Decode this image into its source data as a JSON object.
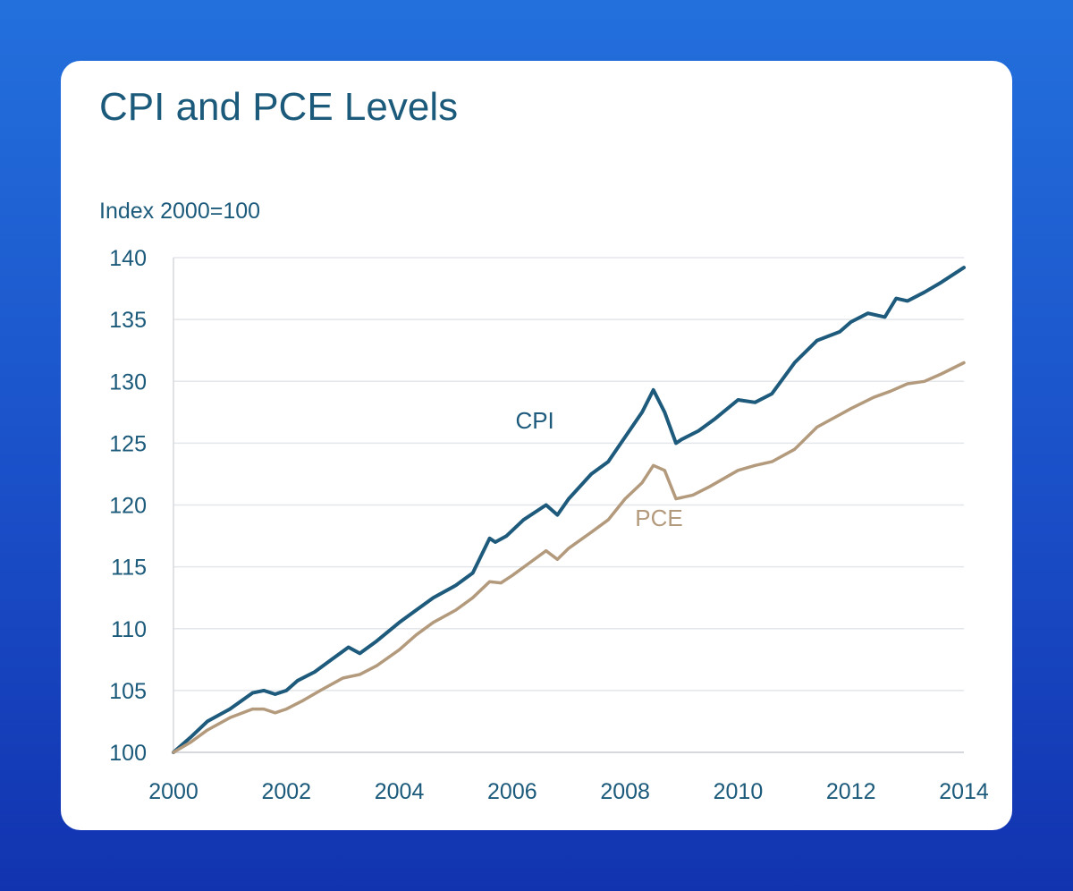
{
  "chart_data": {
    "type": "line",
    "title": "CPI and PCE Levels",
    "ylabel": "Index 2000=100",
    "xlabel": "",
    "xlim": [
      2000,
      2014
    ],
    "ylim": [
      100,
      140
    ],
    "x_ticks": [
      "2000",
      "2002",
      "2004",
      "2006",
      "2008",
      "2010",
      "2012",
      "2014"
    ],
    "y_ticks": [
      "100",
      "105",
      "110",
      "115",
      "120",
      "125",
      "130",
      "135",
      "140"
    ],
    "grid": true,
    "series": [
      {
        "name": "CPI",
        "color": "#1d5a7c",
        "x": [
          2000.0,
          2000.3,
          2000.6,
          2001.0,
          2001.4,
          2001.6,
          2001.8,
          2002.0,
          2002.2,
          2002.5,
          2002.8,
          2003.1,
          2003.3,
          2003.6,
          2004.0,
          2004.3,
          2004.6,
          2005.0,
          2005.3,
          2005.6,
          2005.7,
          2005.9,
          2006.2,
          2006.6,
          2006.8,
          2007.0,
          2007.4,
          2007.7,
          2008.0,
          2008.3,
          2008.5,
          2008.7,
          2008.9,
          2009.0,
          2009.3,
          2009.6,
          2010.0,
          2010.3,
          2010.6,
          2011.0,
          2011.4,
          2011.8,
          2012.0,
          2012.3,
          2012.6,
          2012.8,
          2013.0,
          2013.3,
          2013.6,
          2014.0
        ],
        "values": [
          100.0,
          101.2,
          102.5,
          103.5,
          104.8,
          105.0,
          104.7,
          105.0,
          105.8,
          106.5,
          107.5,
          108.5,
          108.0,
          109.0,
          110.5,
          111.5,
          112.5,
          113.5,
          114.5,
          117.3,
          117.0,
          117.5,
          118.8,
          120.0,
          119.2,
          120.5,
          122.5,
          123.5,
          125.5,
          127.5,
          129.3,
          127.5,
          125.0,
          125.3,
          126.0,
          127.0,
          128.5,
          128.3,
          129.0,
          131.5,
          133.3,
          134.0,
          134.8,
          135.5,
          135.2,
          136.7,
          136.5,
          137.2,
          138.0,
          139.2
        ]
      },
      {
        "name": "PCE",
        "color": "#b39a7c",
        "x": [
          2000.0,
          2000.3,
          2000.6,
          2001.0,
          2001.4,
          2001.6,
          2001.8,
          2002.0,
          2002.3,
          2002.6,
          2003.0,
          2003.3,
          2003.6,
          2004.0,
          2004.3,
          2004.6,
          2005.0,
          2005.3,
          2005.6,
          2005.8,
          2006.0,
          2006.3,
          2006.6,
          2006.8,
          2007.0,
          2007.4,
          2007.7,
          2008.0,
          2008.3,
          2008.5,
          2008.7,
          2008.9,
          2009.2,
          2009.5,
          2010.0,
          2010.3,
          2010.6,
          2011.0,
          2011.4,
          2011.8,
          2012.0,
          2012.4,
          2012.7,
          2013.0,
          2013.3,
          2013.6,
          2014.0
        ],
        "values": [
          100.0,
          100.8,
          101.8,
          102.8,
          103.5,
          103.5,
          103.2,
          103.5,
          104.2,
          105.0,
          106.0,
          106.3,
          107.0,
          108.3,
          109.5,
          110.5,
          111.5,
          112.5,
          113.8,
          113.7,
          114.3,
          115.3,
          116.3,
          115.6,
          116.5,
          117.8,
          118.8,
          120.5,
          121.8,
          123.2,
          122.8,
          120.5,
          120.8,
          121.5,
          122.8,
          123.2,
          123.5,
          124.5,
          126.3,
          127.3,
          127.8,
          128.7,
          129.2,
          129.8,
          130.0,
          130.6,
          131.5
        ]
      }
    ],
    "annotations": [
      {
        "text": "CPI",
        "x": 2006.4,
        "y": 126.2,
        "color": "#1d5a7c"
      },
      {
        "text": "PCE",
        "x": 2008.6,
        "y": 118.3,
        "color": "#b39a7c"
      }
    ]
  }
}
